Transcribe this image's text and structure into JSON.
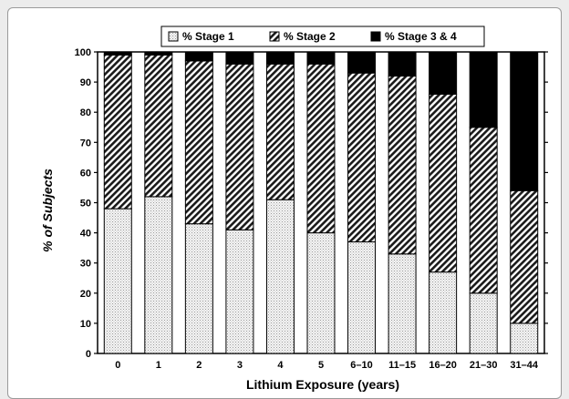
{
  "chart_data": {
    "type": "bar",
    "stacked": true,
    "categories": [
      "0",
      "1",
      "2",
      "3",
      "4",
      "5",
      "6–10",
      "11–15",
      "16–20",
      "21–30",
      "31–44"
    ],
    "series": [
      {
        "name": "% Stage 1",
        "values": [
          48,
          52,
          43,
          41,
          51,
          40,
          37,
          33,
          27,
          20,
          10
        ]
      },
      {
        "name": "% Stage 2",
        "values": [
          51,
          47,
          54,
          55,
          45,
          56,
          56,
          59,
          59,
          55,
          44
        ]
      },
      {
        "name": "% Stage 3 & 4",
        "values": [
          1,
          1,
          3,
          4,
          4,
          4,
          7,
          8,
          14,
          25,
          46
        ]
      }
    ],
    "xlabel": "Lithium Exposure (years)",
    "ylabel": "% of Subjects",
    "ylim": [
      0,
      100
    ],
    "yticks": [
      0,
      10,
      20,
      30,
      40,
      50,
      60,
      70,
      80,
      90,
      100
    ],
    "grid": false,
    "legend_position": "top"
  },
  "colors": {
    "stage1_fill": "#e6e6e6",
    "stage2_stripe": "#222222",
    "stage34_fill": "#000000"
  }
}
